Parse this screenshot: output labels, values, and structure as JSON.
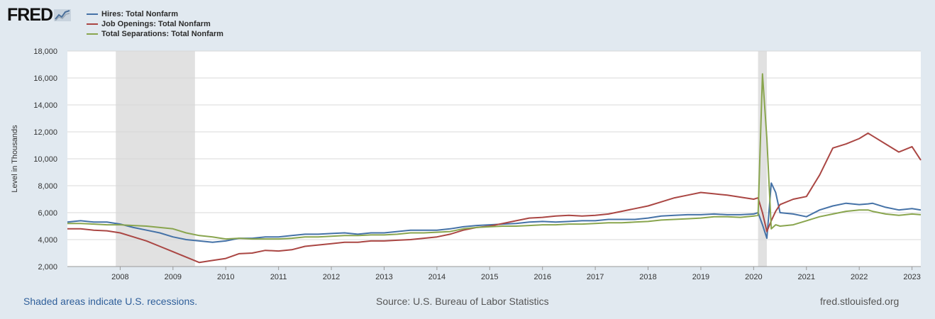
{
  "header": {
    "logo_text": "FRED",
    "logo_mark_icon": "fred-chart-icon"
  },
  "footer": {
    "recession_note": "Shaded areas indicate U.S. recessions.",
    "source": "Source: U.S. Bureau of Labor Statistics",
    "site": "fred.stlouisfed.org"
  },
  "chart_data": {
    "type": "line",
    "title": "",
    "xlabel": "",
    "ylabel": "Level in Thousands",
    "ylim": [
      2000,
      18000
    ],
    "xlim": [
      "2007-01",
      "2023-03"
    ],
    "y_ticks": [
      "2,000",
      "4,000",
      "6,000",
      "8,000",
      "10,000",
      "12,000",
      "14,000",
      "16,000",
      "18,000"
    ],
    "x_ticks": [
      "2008",
      "2009",
      "2010",
      "2011",
      "2012",
      "2013",
      "2014",
      "2015",
      "2016",
      "2017",
      "2018",
      "2019",
      "2020",
      "2021",
      "2022",
      "2023"
    ],
    "grid": "horizontal",
    "legend_position": "top-left",
    "recessions": [
      {
        "start": "2007-12",
        "end": "2009-06"
      },
      {
        "start": "2020-02",
        "end": "2020-04"
      }
    ],
    "x": [
      "2007-01",
      "2007-04",
      "2007-07",
      "2007-10",
      "2008-01",
      "2008-04",
      "2008-07",
      "2008-10",
      "2009-01",
      "2009-04",
      "2009-07",
      "2009-10",
      "2010-01",
      "2010-04",
      "2010-07",
      "2010-10",
      "2011-01",
      "2011-04",
      "2011-07",
      "2011-10",
      "2012-01",
      "2012-04",
      "2012-07",
      "2012-10",
      "2013-01",
      "2013-04",
      "2013-07",
      "2013-10",
      "2014-01",
      "2014-04",
      "2014-07",
      "2014-10",
      "2015-01",
      "2015-04",
      "2015-07",
      "2015-10",
      "2016-01",
      "2016-04",
      "2016-07",
      "2016-10",
      "2017-01",
      "2017-04",
      "2017-07",
      "2017-10",
      "2018-01",
      "2018-04",
      "2018-07",
      "2018-10",
      "2019-01",
      "2019-04",
      "2019-07",
      "2019-10",
      "2020-01",
      "2020-02",
      "2020-03",
      "2020-04",
      "2020-05",
      "2020-06",
      "2020-07",
      "2020-10",
      "2021-01",
      "2021-04",
      "2021-07",
      "2021-10",
      "2022-01",
      "2022-03",
      "2022-04",
      "2022-07",
      "2022-10",
      "2023-01",
      "2023-03"
    ],
    "series": [
      {
        "name": "Hires: Total Nonfarm",
        "color": "#4572a7",
        "values": [
          5300,
          5400,
          5300,
          5300,
          5150,
          4900,
          4700,
          4500,
          4200,
          4000,
          3900,
          3800,
          3900,
          4100,
          4100,
          4200,
          4200,
          4300,
          4400,
          4400,
          4450,
          4500,
          4400,
          4500,
          4500,
          4600,
          4700,
          4700,
          4700,
          4800,
          4950,
          5050,
          5100,
          5150,
          5200,
          5300,
          5350,
          5300,
          5350,
          5400,
          5400,
          5500,
          5500,
          5500,
          5600,
          5750,
          5800,
          5850,
          5850,
          5900,
          5850,
          5850,
          5900,
          6000,
          5100,
          4100,
          8200,
          7500,
          6000,
          5900,
          5700,
          6200,
          6500,
          6700,
          6600,
          6650,
          6700,
          6400,
          6200,
          6300,
          6200
        ]
      },
      {
        "name": "Job Openings: Total Nonfarm",
        "color": "#aa4643",
        "values": [
          4800,
          4800,
          4700,
          4650,
          4500,
          4200,
          3900,
          3500,
          3100,
          2700,
          2300,
          2450,
          2600,
          2950,
          3000,
          3200,
          3150,
          3250,
          3500,
          3600,
          3700,
          3800,
          3800,
          3900,
          3900,
          3950,
          4000,
          4100,
          4200,
          4400,
          4700,
          4900,
          5000,
          5200,
          5400,
          5600,
          5650,
          5750,
          5800,
          5750,
          5800,
          5900,
          6100,
          6300,
          6500,
          6800,
          7100,
          7300,
          7500,
          7400,
          7300,
          7150,
          7000,
          7100,
          6000,
          4600,
          5400,
          6100,
          6600,
          7000,
          7200,
          8800,
          10800,
          11100,
          11500,
          11900,
          11700,
          11100,
          10500,
          10900,
          9900
        ]
      },
      {
        "name": "Total Separations: Total Nonfarm",
        "color": "#89a54e",
        "values": [
          5200,
          5200,
          5150,
          5100,
          5100,
          5050,
          5000,
          4900,
          4800,
          4500,
          4300,
          4200,
          4050,
          4100,
          4050,
          4050,
          4050,
          4100,
          4200,
          4200,
          4250,
          4300,
          4300,
          4350,
          4350,
          4400,
          4500,
          4500,
          4550,
          4600,
          4800,
          4900,
          4950,
          5000,
          5000,
          5050,
          5100,
          5100,
          5150,
          5150,
          5200,
          5250,
          5250,
          5300,
          5350,
          5450,
          5500,
          5550,
          5600,
          5700,
          5700,
          5650,
          5750,
          5800,
          16300,
          11500,
          4800,
          5100,
          5000,
          5100,
          5400,
          5700,
          5900,
          6100,
          6200,
          6200,
          6100,
          5900,
          5800,
          5900,
          5850
        ]
      }
    ]
  }
}
